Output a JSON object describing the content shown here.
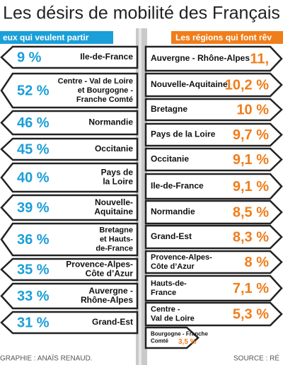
{
  "title": "Les désirs de mobilité des Français",
  "left": {
    "header": "eux qui veulent partir",
    "rows": [
      {
        "value": "9 %",
        "label": [
          "Ile-de-France"
        ]
      },
      {
        "value": "52 %",
        "label": [
          "Centre - Val de Loire",
          "et Bourgogne -",
          "Franche Comté"
        ]
      },
      {
        "value": "46 %",
        "label": [
          "Normandie"
        ]
      },
      {
        "value": "45 %",
        "label": [
          "Occitanie"
        ]
      },
      {
        "value": "40 %",
        "label": [
          "Pays de",
          "la Loire"
        ]
      },
      {
        "value": "39 %",
        "label": [
          "Nouvelle-",
          "Aquitaine"
        ]
      },
      {
        "value": "36 %",
        "label": [
          "Bretagne",
          "et Hauts-",
          "de-France"
        ]
      },
      {
        "value": "35 %",
        "label": [
          "Provence-Alpes-",
          "Côte d’Azur"
        ]
      },
      {
        "value": "33 %",
        "label": [
          "Auvergne -",
          "Rhône-Alpes"
        ]
      },
      {
        "value": "31 %",
        "label": [
          "Grand-Est"
        ]
      }
    ]
  },
  "right": {
    "header": "Les régions qui font rêv",
    "rows": [
      {
        "value": "11,",
        "label": [
          "Auvergne - Rhône-Alpes"
        ]
      },
      {
        "value": "10,2 %",
        "label": [
          "Nouvelle-Aquitaine"
        ]
      },
      {
        "value": "10 %",
        "label": [
          "Bretagne"
        ]
      },
      {
        "value": "9,7 %",
        "label": [
          "Pays de la Loire"
        ]
      },
      {
        "value": "9,1 %",
        "label": [
          "Occitanie"
        ]
      },
      {
        "value": "9,1 %",
        "label": [
          "Ile-de-France"
        ]
      },
      {
        "value": "8,5 %",
        "label": [
          "Normandie"
        ]
      },
      {
        "value": "8,3 %",
        "label": [
          "Grand-Est"
        ]
      },
      {
        "value": "8 %",
        "label": [
          "Provence-Alpes-",
          "Côte d’Azur"
        ]
      },
      {
        "value": "7,1 %",
        "label": [
          "Hauts-de-",
          "France"
        ]
      },
      {
        "value": "5,3 %",
        "label": [
          "Centre -",
          "Val de Loire"
        ]
      },
      {
        "value": "3,5 %",
        "label": [
          "Bourgogne - Franche",
          "Comté"
        ]
      }
    ]
  },
  "footer": {
    "credit": "GRAPHIE : ANAÏS RENAUD.",
    "source": "SOURCE : RÉ"
  }
}
